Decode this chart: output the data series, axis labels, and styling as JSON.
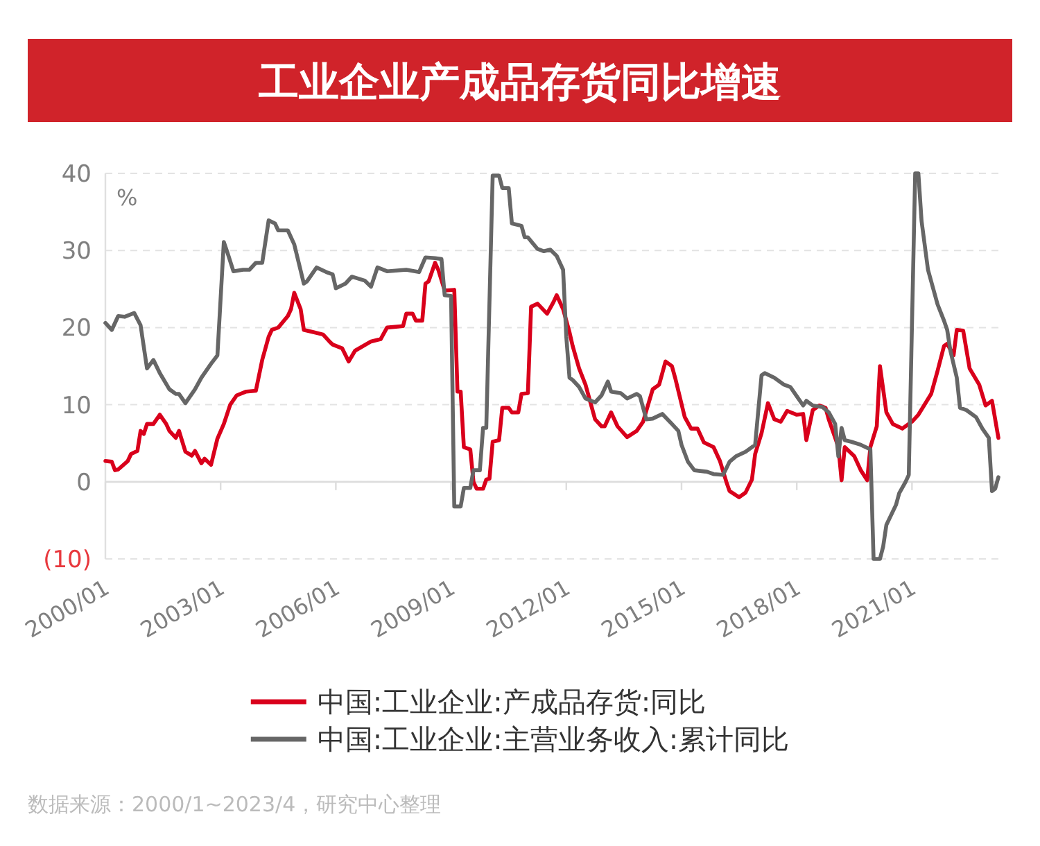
{
  "chart_data": {
    "type": "line",
    "title": "工业企业产成品存货同比增速",
    "ylabel": "%",
    "xlim": [
      "2000-01",
      "2023-04"
    ],
    "ylim": [
      -10,
      40
    ],
    "xticks": [
      {
        "value": "2000-01",
        "label": "2000/01"
      },
      {
        "value": "2003-01",
        "label": "2003/01"
      },
      {
        "value": "2006-01",
        "label": "2006/01"
      },
      {
        "value": "2009-01",
        "label": "2009/01"
      },
      {
        "value": "2012-01",
        "label": "2012/01"
      },
      {
        "value": "2015-01",
        "label": "2015/01"
      },
      {
        "value": "2018-01",
        "label": "2018/01"
      },
      {
        "value": "2021-01",
        "label": "2021/01"
      }
    ],
    "yticks": [
      {
        "value": -10,
        "label": "(10)"
      },
      0,
      10,
      20,
      30,
      40
    ],
    "grid": "y",
    "legend": "bottom",
    "line_style": "solid",
    "series": [
      {
        "name": "中国:工业企业:产成品存货:同比",
        "color": "#d9001b",
        "x": [
          "2000-01",
          "2000-03",
          "2000-04",
          "2000-05",
          "2000-08",
          "2000-09",
          "2000-11",
          "2000-12",
          "2001-01",
          "2001-02",
          "2001-04",
          "2001-06",
          "2001-08",
          "2001-09",
          "2001-11",
          "2001-12",
          "2002-02",
          "2002-04",
          "2002-05",
          "2002-07",
          "2002-08",
          "2002-10",
          "2002-12",
          "2003-02",
          "2003-04",
          "2003-06",
          "2003-09",
          "2003-12",
          "2004-02",
          "2004-04",
          "2004-05",
          "2004-07",
          "2004-10",
          "2004-11",
          "2004-12",
          "2005-02",
          "2005-03",
          "2005-06",
          "2005-09",
          "2005-11",
          "2005-12",
          "2006-03",
          "2006-05",
          "2006-07",
          "2006-12",
          "2007-03",
          "2007-05",
          "2007-10",
          "2007-11",
          "2008-01",
          "2008-02",
          "2008-04",
          "2008-05",
          "2008-06",
          "2008-08",
          "2008-09",
          "2008-11",
          "2009-02",
          "2009-03",
          "2009-04",
          "2009-05",
          "2009-07",
          "2009-08",
          "2009-09",
          "2009-11",
          "2009-12",
          "2010-01",
          "2010-02",
          "2010-04",
          "2010-05",
          "2010-07",
          "2010-08",
          "2010-10",
          "2010-11",
          "2011-01",
          "2011-02",
          "2011-04",
          "2011-07",
          "2011-09",
          "2011-10",
          "2011-12",
          "2012-02",
          "2012-03",
          "2012-05",
          "2012-07",
          "2012-10",
          "2012-12",
          "2013-01",
          "2013-03",
          "2013-05",
          "2013-08",
          "2013-11",
          "2014-01",
          "2014-04",
          "2014-06",
          "2014-08",
          "2014-10",
          "2014-11",
          "2015-02",
          "2015-04",
          "2015-06",
          "2015-08",
          "2015-11",
          "2016-01",
          "2016-03",
          "2016-04",
          "2016-07",
          "2016-09",
          "2016-11",
          "2016-12",
          "2017-02",
          "2017-04",
          "2017-06",
          "2017-08",
          "2017-10",
          "2018-01",
          "2018-03",
          "2018-04",
          "2018-06",
          "2018-08",
          "2018-10",
          "2018-11",
          "2019-01",
          "2019-02",
          "2019-03",
          "2019-04",
          "2019-07",
          "2019-09",
          "2019-11",
          "2019-12",
          "2020-02",
          "2020-03",
          "2020-05",
          "2020-07",
          "2020-10",
          "2021-01",
          "2021-03",
          "2021-07",
          "2021-09",
          "2021-11",
          "2021-12",
          "2022-02",
          "2022-03",
          "2022-05",
          "2022-07",
          "2022-10",
          "2022-12",
          "2023-02",
          "2023-04"
        ],
        "values": [
          2.7,
          2.6,
          1.5,
          1.6,
          2.7,
          3.6,
          4.0,
          6.6,
          6.2,
          7.5,
          7.5,
          8.7,
          7.5,
          6.6,
          5.7,
          6.6,
          3.9,
          3.4,
          4.0,
          2.4,
          3.0,
          2.2,
          5.6,
          7.5,
          10.0,
          11.2,
          11.7,
          11.8,
          15.8,
          18.8,
          19.7,
          20.0,
          21.5,
          22.4,
          24.5,
          22.4,
          19.7,
          19.4,
          19.1,
          18.2,
          17.8,
          17.3,
          15.6,
          17.0,
          18.2,
          18.5,
          20.0,
          20.2,
          21.8,
          21.8,
          20.9,
          20.9,
          25.7,
          26.0,
          28.4,
          27.5,
          24.8,
          24.9,
          11.7,
          11.7,
          4.5,
          4.2,
          0,
          -0.9,
          -0.9,
          0.3,
          0.4,
          5.2,
          5.4,
          9.6,
          9.6,
          9.0,
          9.0,
          11.4,
          11.5,
          22.7,
          23.1,
          21.8,
          23.3,
          24.2,
          22.4,
          19.4,
          17.6,
          14.7,
          12.6,
          8.1,
          7.2,
          7.2,
          9.0,
          7.2,
          5.8,
          6.6,
          7.8,
          12.0,
          12.6,
          15.6,
          15.0,
          13.5,
          8.4,
          6.9,
          6.9,
          5.1,
          4.5,
          2.7,
          0,
          -1.2,
          -2.0,
          -1.4,
          0.3,
          3.6,
          6.3,
          10.2,
          8.1,
          7.8,
          9.2,
          8.7,
          8.8,
          5.4,
          9.3,
          9.9,
          9.6,
          8.1,
          5.7,
          4.5,
          0.2,
          4.5,
          3.3,
          1.5,
          0.2,
          4.5,
          7.2,
          15.0,
          9.0,
          7.5,
          6.9,
          7.8,
          8.7,
          11.4,
          14.4,
          17.6,
          17.9,
          16.4,
          19.7,
          19.6,
          14.7,
          12.6,
          9.9,
          10.5,
          5.7
        ]
      },
      {
        "name": "中国:工业企业:主营业务收入:累计同比",
        "color": "#666666",
        "x": [
          "2000-01",
          "2000-03",
          "2000-05",
          "2000-07",
          "2000-10",
          "2000-12",
          "2001-02",
          "2001-04",
          "2001-06",
          "2001-09",
          "2001-11",
          "2001-12",
          "2002-02",
          "2002-05",
          "2002-07",
          "2002-10",
          "2002-12",
          "2003-02",
          "2003-03",
          "2003-05",
          "2003-08",
          "2003-10",
          "2003-12",
          "2004-02",
          "2004-04",
          "2004-06",
          "2004-07",
          "2004-10",
          "2004-12",
          "2005-03",
          "2005-04",
          "2005-07",
          "2005-10",
          "2005-12",
          "2006-01",
          "2006-04",
          "2006-06",
          "2006-10",
          "2006-12",
          "2007-02",
          "2007-05",
          "2007-11",
          "2008-03",
          "2008-05",
          "2008-08",
          "2008-10",
          "2008-11",
          "2009-01",
          "2009-02",
          "2009-04",
          "2009-05",
          "2009-07",
          "2009-08",
          "2009-10",
          "2009-11",
          "2009-12",
          "2010-02",
          "2010-04",
          "2010-05",
          "2010-07",
          "2010-08",
          "2010-11",
          "2010-12",
          "2011-01",
          "2011-04",
          "2011-06",
          "2011-08",
          "2011-10",
          "2011-12",
          "2012-01",
          "2012-02",
          "2012-03",
          "2012-05",
          "2012-07",
          "2012-10",
          "2012-12",
          "2013-02",
          "2013-03",
          "2013-06",
          "2013-08",
          "2013-11",
          "2013-12",
          "2014-02",
          "2014-04",
          "2014-07",
          "2014-10",
          "2014-12",
          "2015-01",
          "2015-03",
          "2015-05",
          "2015-09",
          "2015-11",
          "2016-02",
          "2016-04",
          "2016-06",
          "2016-09",
          "2016-12",
          "2017-02",
          "2017-03",
          "2017-06",
          "2017-09",
          "2017-11",
          "2018-01",
          "2018-03",
          "2018-04",
          "2018-06",
          "2018-09",
          "2018-11",
          "2019-01",
          "2019-02",
          "2019-03",
          "2019-04",
          "2019-06",
          "2019-09",
          "2019-12",
          "2020-01",
          "2020-03",
          "2020-04",
          "2020-05",
          "2020-08",
          "2020-09",
          "2020-11",
          "2020-12",
          "2021-02",
          "2021-03",
          "2021-04",
          "2021-06",
          "2021-09",
          "2021-11",
          "2021-12",
          "2022-01",
          "2022-03",
          "2022-04",
          "2022-06",
          "2022-09",
          "2022-11",
          "2023-01",
          "2023-02",
          "2023-03",
          "2023-04"
        ],
        "values": [
          20.6,
          19.7,
          21.5,
          21.4,
          21.9,
          20.3,
          14.7,
          15.8,
          14.1,
          12.0,
          11.4,
          11.4,
          10.2,
          12.0,
          13.5,
          15.3,
          16.4,
          31.1,
          29.9,
          27.3,
          27.5,
          27.5,
          28.4,
          28.4,
          33.9,
          33.5,
          32.6,
          32.6,
          30.8,
          25.7,
          26.0,
          27.8,
          27.2,
          26.9,
          25.1,
          25.7,
          26.6,
          26.1,
          25.3,
          27.8,
          27.3,
          27.5,
          27.2,
          29.1,
          29.0,
          28.9,
          24.2,
          24.1,
          -3.2,
          -3.2,
          -0.8,
          -0.8,
          1.5,
          1.5,
          7.0,
          7.0,
          39.7,
          39.7,
          38.1,
          38.1,
          33.5,
          33.2,
          31.7,
          31.7,
          30.2,
          29.9,
          30.1,
          29.3,
          27.5,
          18.8,
          13.5,
          13.2,
          12.3,
          10.8,
          10.3,
          11.2,
          13.0,
          11.7,
          11.5,
          10.8,
          11.4,
          11.1,
          8.1,
          8.2,
          8.8,
          7.5,
          6.6,
          4.8,
          2.6,
          1.5,
          1.3,
          1.0,
          0.9,
          2.6,
          3.3,
          3.9,
          4.8,
          13.8,
          14.1,
          13.5,
          12.6,
          12.3,
          11.1,
          9.9,
          10.5,
          9.9,
          9.7,
          9.0,
          7.5,
          3.3,
          7.0,
          5.4,
          5.2,
          4.8,
          4.2,
          -10,
          -10,
          -8.4,
          -5.6,
          -3.0,
          -1.5,
          0,
          0.9,
          40,
          40,
          33.8,
          27.5,
          23.0,
          20.9,
          19.7,
          17.0,
          13.5,
          9.6,
          9.3,
          8.4,
          6.9,
          5.7,
          -1.2,
          -0.9,
          0.6
        ]
      }
    ],
    "annotations": [
      "数据来源：2000/1~2023/4，研究中心整理"
    ]
  }
}
